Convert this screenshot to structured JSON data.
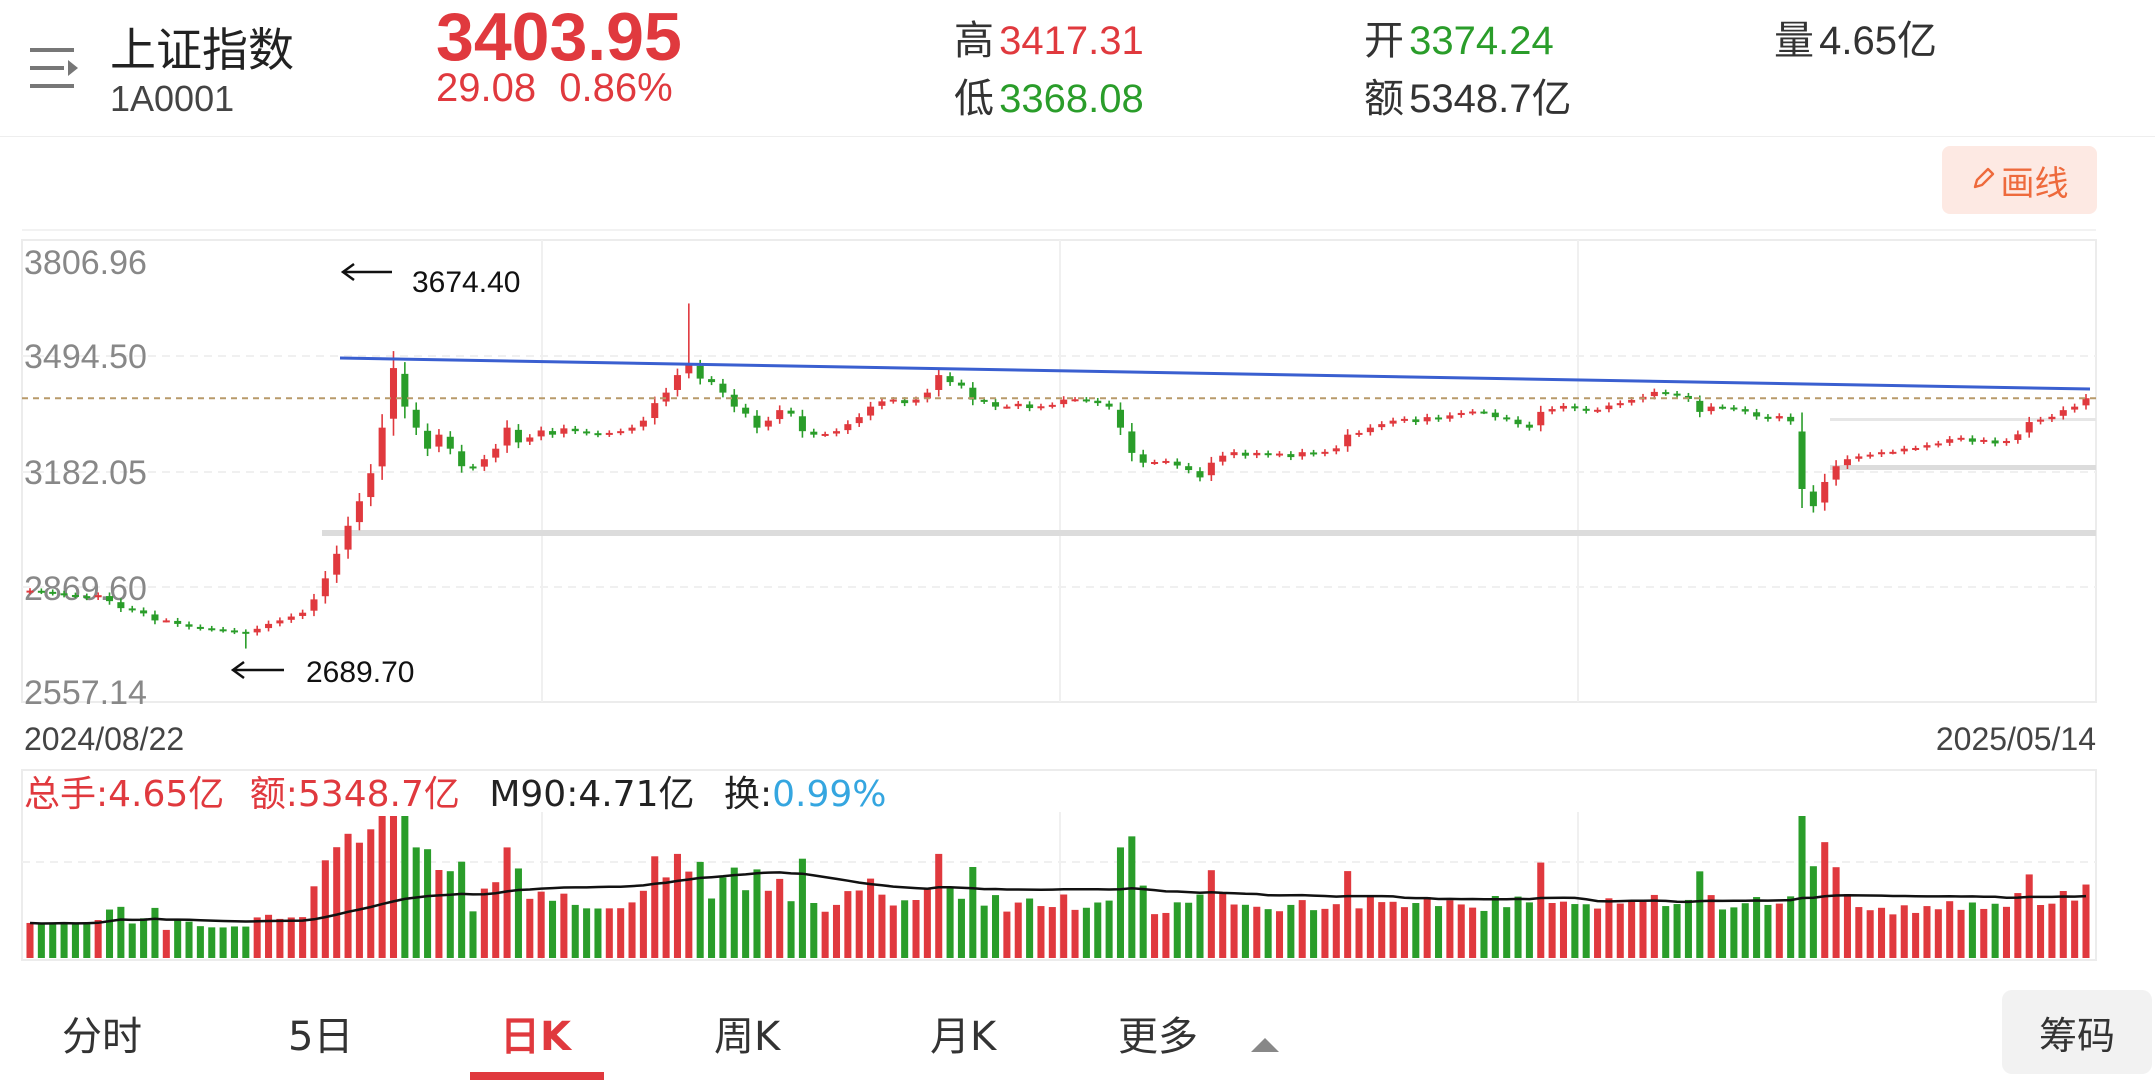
{
  "header": {
    "index_name": "上证指数",
    "index_code": "1A0001",
    "price": "3403.95",
    "change": "29.08",
    "change_pct": "0.86%",
    "high_label": "高",
    "high": "3417.31",
    "low_label": "低",
    "low": "3368.08",
    "open_label": "开",
    "open": "3374.24",
    "amount_label": "额",
    "amount": "5348.7亿",
    "volume_label": "量",
    "volume": "4.65亿"
  },
  "toolbar": {
    "draw_label": "画线",
    "draw_icon": "pencil-icon",
    "menu_icon": "menu-icon"
  },
  "chart_data": {
    "type": "candlestick",
    "y_ticks": [
      "3806.96",
      "3494.50",
      "3182.05",
      "2869.60",
      "2557.14"
    ],
    "ylim": [
      2557.14,
      3806.96
    ],
    "x_start": "2024/08/22",
    "x_end": "2025/05/14",
    "annotations": {
      "high": "3674.40",
      "low": "2689.70"
    },
    "current_price_line": 3403.95,
    "trendline_label": "",
    "closes": [
      2855,
      2852,
      2848,
      2843,
      2840,
      2835,
      2842,
      2825,
      2805,
      2800,
      2790,
      2770,
      2770,
      2760,
      2752,
      2748,
      2745,
      2742,
      2738,
      2734,
      2746,
      2760,
      2770,
      2781,
      2792,
      2830,
      2890,
      2960,
      3040,
      3110,
      3190,
      3320,
      3490,
      3380,
      3320,
      3260,
      3300,
      3260,
      3210,
      3205,
      3230,
      3260,
      3320,
      3278,
      3292,
      3312,
      3300,
      3318,
      3310,
      3305,
      3300,
      3305,
      3310,
      3320,
      3340,
      3390,
      3420,
      3470,
      3503,
      3460,
      3450,
      3420,
      3380,
      3360,
      3320,
      3340,
      3370,
      3360,
      3310,
      3300,
      3302,
      3310,
      3330,
      3350,
      3380,
      3395,
      3400,
      3390,
      3400,
      3420,
      3470,
      3450,
      3440,
      3400,
      3395,
      3380,
      3380,
      3388,
      3376,
      3381,
      3385,
      3400,
      3401,
      3398,
      3390,
      3380,
      3320,
      3248,
      3220,
      3222,
      3225,
      3212,
      3199,
      3178,
      3220,
      3240,
      3250,
      3240,
      3248,
      3242,
      3246,
      3236,
      3250,
      3245,
      3251,
      3261,
      3300,
      3305,
      3320,
      3330,
      3340,
      3345,
      3336,
      3350,
      3344,
      3355,
      3362,
      3366,
      3365,
      3350,
      3345,
      3330,
      3320,
      3365,
      3373,
      3382,
      3375,
      3368,
      3371,
      3383,
      3390,
      3399,
      3408,
      3422,
      3418,
      3412,
      3402,
      3365,
      3380,
      3378,
      3374,
      3366,
      3352,
      3345,
      3353,
      3338,
      3145,
      3096,
      3165,
      3210,
      3230,
      3238,
      3243,
      3250,
      3251,
      3260,
      3262,
      3270,
      3275,
      3287,
      3291,
      3280,
      3285,
      3275,
      3282,
      3301,
      3336,
      3343,
      3351,
      3370,
      3380,
      3403.95
    ]
  },
  "volume_panel": {
    "total_label": "总手:",
    "total": "4.65亿",
    "amount_label": "额:",
    "amount": "5348.7亿",
    "ma_label": "M90:",
    "ma": "4.71亿",
    "turnover_label": "换:",
    "turnover": "0.99%"
  },
  "tabs": {
    "fenshi": "分时",
    "five_day": "5日",
    "day_k": "日K",
    "week_k": "周K",
    "month_k": "月K",
    "more": "更多",
    "chips": "筹码"
  },
  "colors": {
    "up": "#e0393e",
    "down": "#2a9d2a",
    "trend": "#3a5fd0",
    "accent": "#e0393e"
  }
}
